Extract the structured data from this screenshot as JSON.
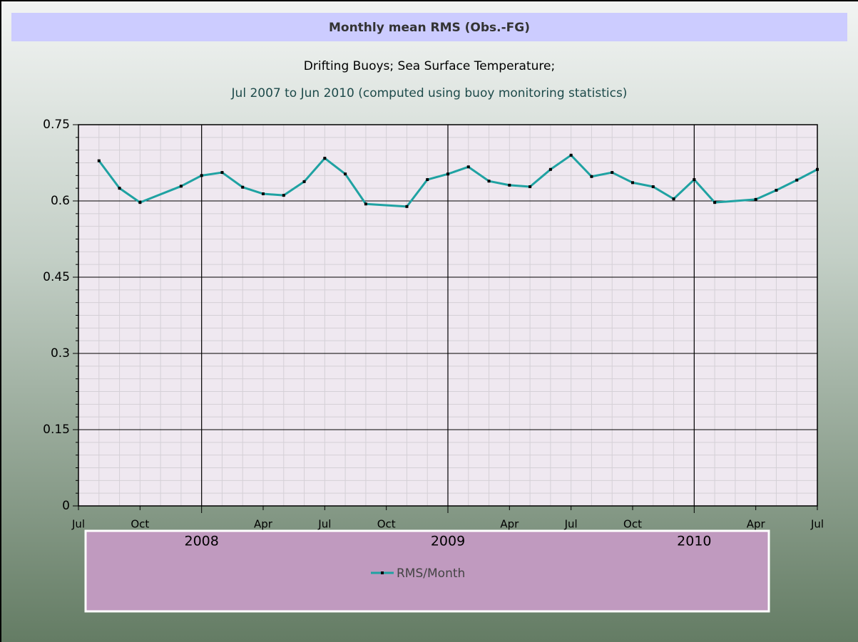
{
  "chart_data": {
    "type": "line",
    "title": "Monthly mean RMS (Obs.-FG)",
    "subtitle": [
      "Drifting Buoys; Sea Surface Temperature;",
      "Jul 2007 to Jun 2010 (computed using buoy monitoring statistics)"
    ],
    "x": [
      "2007-08",
      "2007-09",
      "2007-10",
      "2007-12",
      "2008-01",
      "2008-02",
      "2008-03",
      "2008-04",
      "2008-05",
      "2008-06",
      "2008-07",
      "2008-08",
      "2008-09",
      "2008-11",
      "2008-12",
      "2009-01",
      "2009-02",
      "2009-03",
      "2009-04",
      "2009-05",
      "2009-06",
      "2009-07",
      "2009-08",
      "2009-09",
      "2009-10",
      "2009-11",
      "2009-12",
      "2010-01",
      "2010-02",
      "2010-04",
      "2010-05",
      "2010-06",
      "2010-07"
    ],
    "series": [
      {
        "name": "RMS/Month",
        "color": "#1fa2a2",
        "values": [
          0.679,
          0.625,
          0.597,
          0.629,
          0.65,
          0.656,
          0.627,
          0.614,
          0.611,
          0.638,
          0.684,
          0.653,
          0.594,
          0.589,
          0.642,
          0.653,
          0.667,
          0.639,
          0.631,
          0.628,
          0.662,
          0.69,
          0.648,
          0.656,
          0.636,
          0.628,
          0.604,
          0.642,
          0.597,
          0.603,
          0.621,
          0.641,
          0.662
        ]
      }
    ],
    "xlim": [
      "2007-07",
      "2010-07"
    ],
    "xticks": [
      {
        "value": "2007-07",
        "label": "Jul"
      },
      {
        "value": "2007-10",
        "label": "Oct"
      },
      {
        "value": "2008-01",
        "label": "2008"
      },
      {
        "value": "2008-04",
        "label": "Apr"
      },
      {
        "value": "2008-07",
        "label": "Jul"
      },
      {
        "value": "2008-10",
        "label": "Oct"
      },
      {
        "value": "2009-01",
        "label": "2009"
      },
      {
        "value": "2009-04",
        "label": "Apr"
      },
      {
        "value": "2009-07",
        "label": "Jul"
      },
      {
        "value": "2009-10",
        "label": "Oct"
      },
      {
        "value": "2010-01",
        "label": "2010"
      },
      {
        "value": "2010-04",
        "label": "Apr"
      },
      {
        "value": "2010-07",
        "label": "Jul"
      }
    ],
    "ylim": [
      0,
      0.75
    ],
    "yticks": [
      0,
      0.15,
      0.3,
      0.45,
      0.6,
      0.75
    ],
    "grid": true
  }
}
